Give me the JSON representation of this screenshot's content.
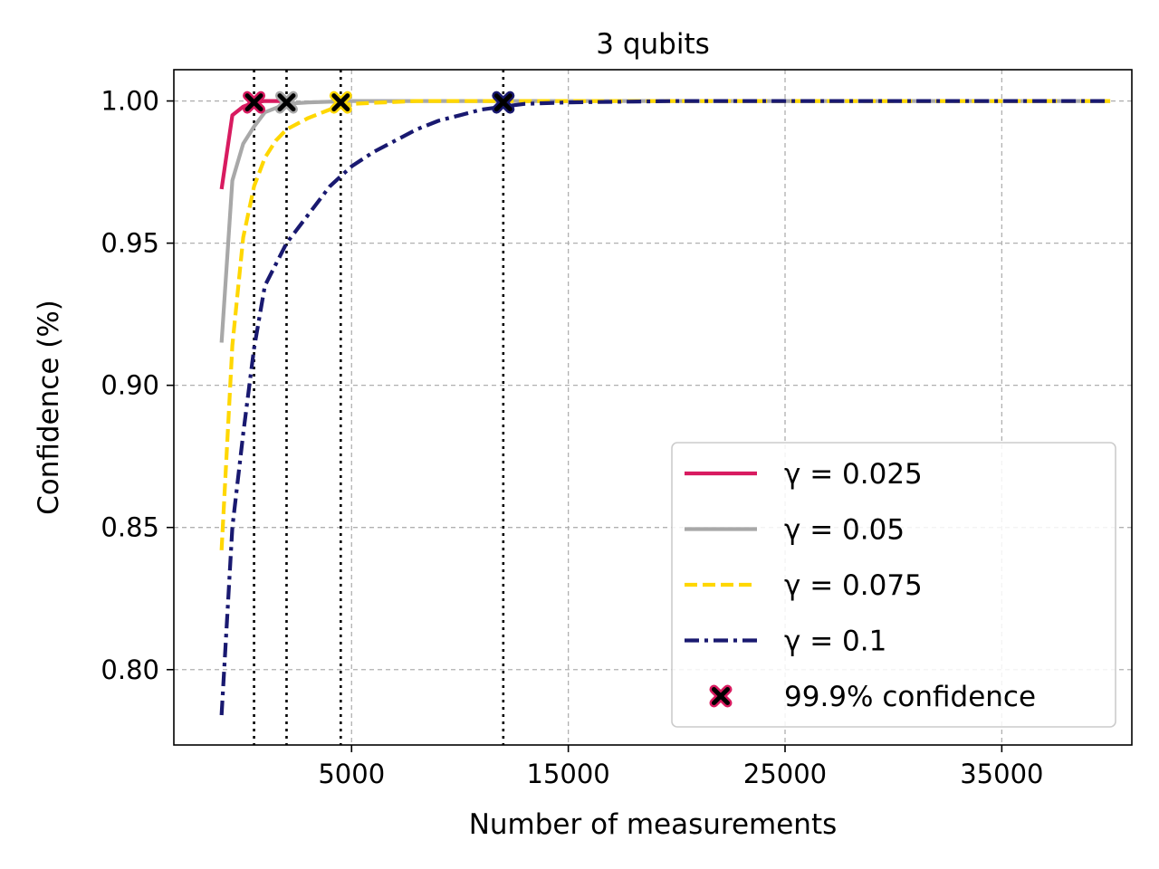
{
  "chart_data": {
    "type": "line",
    "title": "3 qubits",
    "xlabel": "Number of measurements",
    "ylabel": "Confidence (%)",
    "xlim": [
      -3200,
      41000
    ],
    "ylim": [
      0.7735,
      1.011
    ],
    "xticks": [
      5000,
      15000,
      25000,
      35000
    ],
    "xtick_labels": [
      "5000",
      "15000",
      "25000",
      "35000"
    ],
    "yticks": [
      0.8,
      0.85,
      0.9,
      0.95,
      1.0
    ],
    "ytick_labels": [
      "0.80",
      "0.85",
      "0.90",
      "0.95",
      "1.00"
    ],
    "grid": true,
    "legend_position": "lower-right",
    "series": [
      {
        "name": "γ = 0.025",
        "color": "#d81b60",
        "style": "solid",
        "points": [
          [
            -1000,
            0.969
          ],
          [
            -500,
            0.995
          ],
          [
            0,
            0.998
          ],
          [
            500,
            0.9995
          ],
          [
            1000,
            1.0
          ],
          [
            2000,
            1.0
          ]
        ]
      },
      {
        "name": "γ = 0.05",
        "color": "#a8a8a8",
        "style": "solid",
        "points": [
          [
            -1000,
            0.915
          ],
          [
            -500,
            0.972
          ],
          [
            0,
            0.985
          ],
          [
            500,
            0.991
          ],
          [
            1000,
            0.996
          ],
          [
            2000,
            0.999
          ],
          [
            3000,
            0.9995
          ],
          [
            5000,
            1.0
          ],
          [
            10000,
            1.0
          ],
          [
            20000,
            1.0
          ],
          [
            30000,
            1.0
          ],
          [
            40000,
            1.0
          ]
        ]
      },
      {
        "name": "γ = 0.075",
        "color": "#ffd700",
        "style": "dashed",
        "points": [
          [
            -1000,
            0.842
          ],
          [
            -500,
            0.914
          ],
          [
            0,
            0.952
          ],
          [
            500,
            0.97
          ],
          [
            1000,
            0.98
          ],
          [
            1500,
            0.986
          ],
          [
            2000,
            0.99
          ],
          [
            3000,
            0.994
          ],
          [
            4000,
            0.997
          ],
          [
            5000,
            0.999
          ],
          [
            6500,
            0.9995
          ],
          [
            8000,
            1.0
          ],
          [
            15000,
            1.0
          ],
          [
            25000,
            1.0
          ],
          [
            40000,
            1.0
          ]
        ]
      },
      {
        "name": "γ = 0.1",
        "color": "#191970",
        "style": "dashdot",
        "points": [
          [
            -1000,
            0.784
          ],
          [
            -500,
            0.85
          ],
          [
            0,
            0.883
          ],
          [
            500,
            0.913
          ],
          [
            1000,
            0.935
          ],
          [
            2000,
            0.95
          ],
          [
            3000,
            0.96
          ],
          [
            4000,
            0.97
          ],
          [
            5000,
            0.977
          ],
          [
            6000,
            0.982
          ],
          [
            7000,
            0.986
          ],
          [
            8000,
            0.99
          ],
          [
            9000,
            0.993
          ],
          [
            10000,
            0.995
          ],
          [
            11000,
            0.997
          ],
          [
            12000,
            0.998
          ],
          [
            13000,
            0.999
          ],
          [
            15000,
            0.9995
          ],
          [
            20000,
            1.0
          ],
          [
            30000,
            1.0
          ],
          [
            40000,
            1.0
          ]
        ]
      }
    ],
    "confidence_markers": {
      "name": "99.9% confidence",
      "points": [
        {
          "x": 500,
          "y": 0.9995,
          "edge": "#d81b60"
        },
        {
          "x": 2000,
          "y": 0.9995,
          "edge": "#a8a8a8"
        },
        {
          "x": 4500,
          "y": 0.9995,
          "edge": "#ffd700"
        },
        {
          "x": 12000,
          "y": 0.9995,
          "edge": "#191970"
        }
      ]
    },
    "vertical_lines": [
      500,
      2000,
      4500,
      12000
    ]
  }
}
